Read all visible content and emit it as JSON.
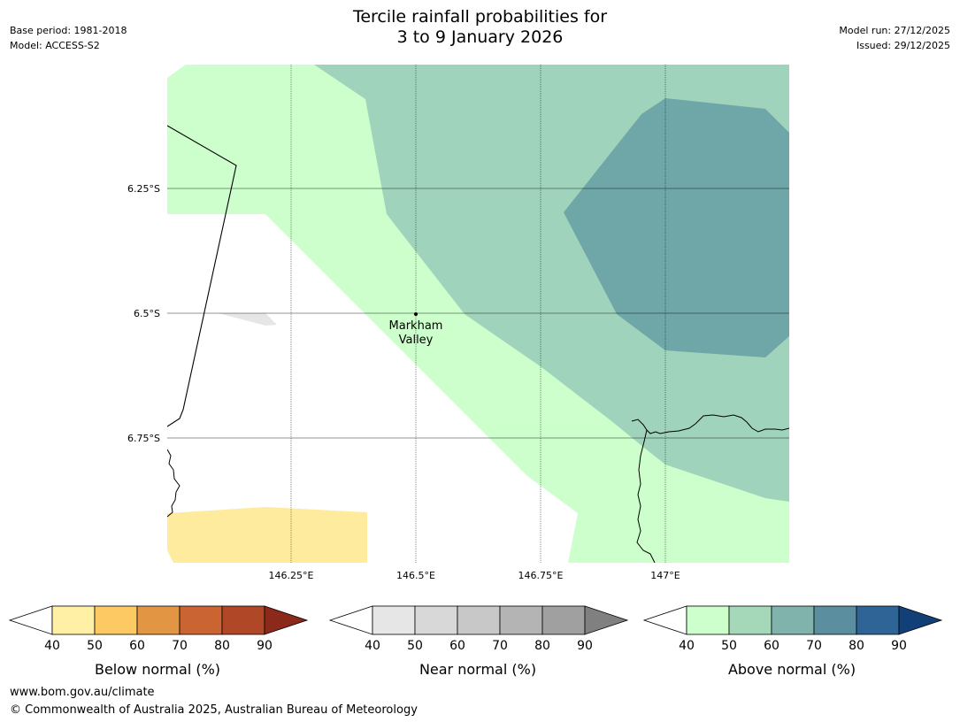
{
  "title_line1": "Tercile rainfall probabilities for",
  "title_line2": "3 to 9 January 2026",
  "meta_left": [
    "Base period: 1981-2018",
    "Model: ACCESS-S2"
  ],
  "meta_right": [
    "Model run: 27/12/2025",
    "Issued: 29/12/2025"
  ],
  "map": {
    "latitude_labels": [
      "6.25°S",
      "6.5°S",
      "6.75°S"
    ],
    "longitude_labels": [
      "146.25°E",
      "146.5°E",
      "146.75°E",
      "147°E"
    ],
    "place_name_line1": "Markham",
    "place_name_line2": "Valley",
    "colors": {
      "above_40": "#ccffcc",
      "above_50": "#9fd3bb",
      "above_60": "#6fa6a8",
      "below_40": "#ffeb9e",
      "near_40": "#e6e6e6"
    }
  },
  "colorbars": [
    {
      "title": "Below normal (%)",
      "ticks": [
        "40",
        "50",
        "60",
        "70",
        "80",
        "90"
      ],
      "colors": [
        "#fff0a5",
        "#fdc963",
        "#e29543",
        "#cb6433",
        "#b04828",
        "#8b2a1a"
      ]
    },
    {
      "title": "Near normal (%)",
      "ticks": [
        "40",
        "50",
        "60",
        "70",
        "80",
        "90"
      ],
      "colors": [
        "#e6e6e6",
        "#d8d8d8",
        "#c8c8c8",
        "#b4b4b4",
        "#a0a0a0",
        "#808080"
      ]
    },
    {
      "title": "Above normal (%)",
      "ticks": [
        "40",
        "50",
        "60",
        "70",
        "80",
        "90"
      ],
      "colors": [
        "#ccffcc",
        "#a4d8b8",
        "#80b3ac",
        "#5b8fa0",
        "#2f6497",
        "#123f77"
      ]
    }
  ],
  "footer": {
    "url": "www.bom.gov.au/climate",
    "copyright": "© Commonwealth of Australia 2025, Australian Bureau of Meteorology"
  }
}
